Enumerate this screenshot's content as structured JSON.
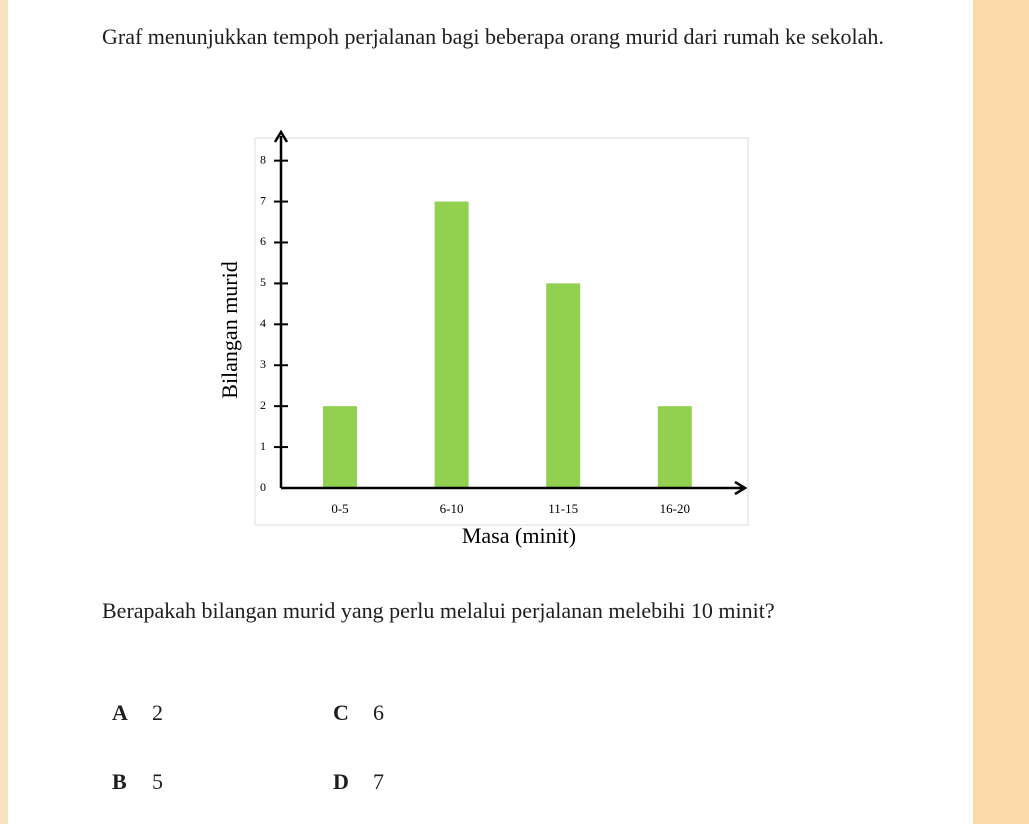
{
  "question": "Graf menunjukkan tempoh perjalanan bagi beberapa orang murid dari rumah ke sekolah.",
  "chart_data": {
    "type": "bar",
    "x_label": "Masa (minit)",
    "y_label": "Bilangan murid",
    "categories": [
      "0-5",
      "6-10",
      "11-15",
      "16-20"
    ],
    "values": [
      2,
      7,
      5,
      2
    ],
    "color": "#92d050",
    "ylim": [
      0,
      8.7
    ],
    "yticks": [
      0,
      1,
      2,
      3,
      4,
      5,
      6,
      7,
      8
    ]
  },
  "question2": "Berapakah bilangan murid yang perlu melalui perjalanan melebihi 10 minit?",
  "options": [
    {
      "letter": "A",
      "text": "2"
    },
    {
      "letter": "C",
      "text": "6"
    },
    {
      "letter": "B",
      "text": "5"
    },
    {
      "letter": "D",
      "text": "7"
    }
  ]
}
